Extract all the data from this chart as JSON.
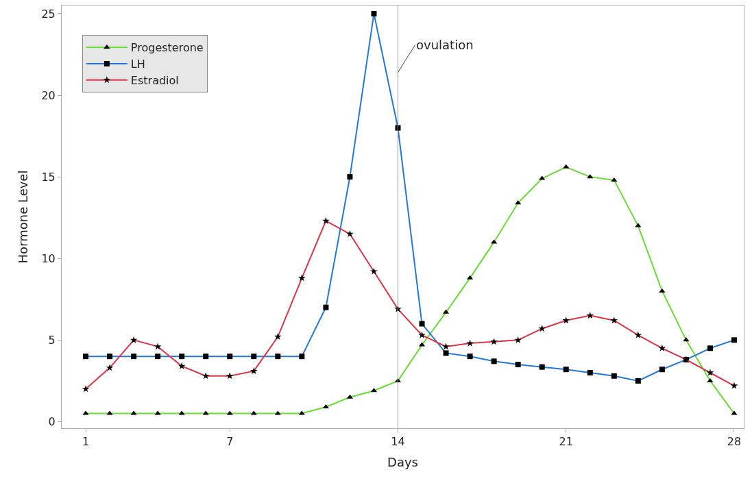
{
  "chart_data": {
    "type": "line",
    "xlabel": "Days",
    "ylabel": "Hormone Level",
    "x": [
      1,
      2,
      3,
      4,
      5,
      6,
      7,
      8,
      9,
      10,
      11,
      12,
      13,
      14,
      15,
      16,
      17,
      18,
      19,
      20,
      21,
      22,
      23,
      24,
      25,
      26,
      27,
      28
    ],
    "series": [
      {
        "name": "Progesterone",
        "color": "#66dd33",
        "marker": "triangle",
        "values": [
          0.5,
          0.5,
          0.5,
          0.5,
          0.5,
          0.5,
          0.5,
          0.5,
          0.5,
          0.5,
          0.9,
          1.5,
          1.9,
          2.5,
          4.7,
          6.7,
          8.8,
          11.0,
          13.4,
          14.9,
          15.6,
          15.0,
          14.8,
          12.0,
          8.0,
          5.0,
          2.5,
          0.5
        ]
      },
      {
        "name": "LH",
        "color": "#2277dd",
        "marker": "square",
        "values": [
          4,
          4,
          4,
          4,
          4,
          4,
          4,
          4,
          4,
          4,
          7,
          15,
          25,
          18,
          6,
          4.2,
          4.0,
          3.7,
          3.5,
          3.35,
          3.2,
          3.0,
          2.8,
          2.5,
          3.2,
          3.8,
          4.5,
          5.0
        ]
      },
      {
        "name": "Estradiol",
        "color": "#dd3344",
        "marker": "star",
        "values": [
          2.0,
          3.3,
          5.0,
          4.6,
          3.4,
          2.8,
          2.8,
          3.1,
          5.2,
          8.8,
          12.3,
          11.5,
          9.2,
          6.9,
          5.3,
          4.6,
          4.8,
          4.9,
          5.0,
          5.7,
          6.2,
          6.5,
          6.2,
          5.3,
          4.5,
          3.8,
          3.0,
          2.2
        ]
      }
    ],
    "xlim": [
      0,
      28.4
    ],
    "ylim": [
      -0.4,
      25.5
    ],
    "xticks": [
      1,
      7,
      14,
      21,
      28
    ],
    "yticks": [
      0,
      5,
      10,
      15,
      20,
      25
    ],
    "ref_lines": [
      {
        "axis": "x",
        "value": 14,
        "color": "#999999"
      }
    ],
    "annotations": [
      {
        "text": "ovulation",
        "x": 14,
        "y": 21.4
      }
    ],
    "legend": "top left",
    "line_style": "solid"
  }
}
